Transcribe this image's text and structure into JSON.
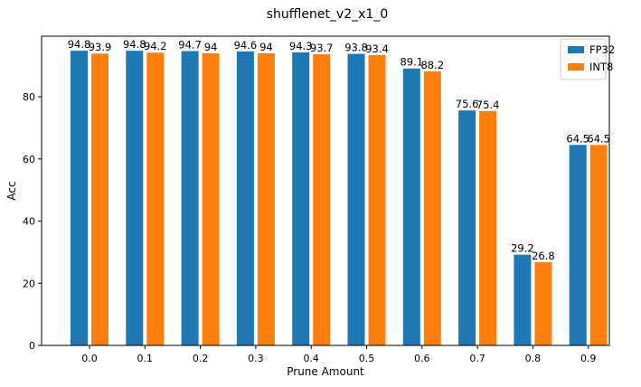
{
  "chart_data": {
    "type": "bar",
    "title": "shufflenet_v2_x1_0",
    "xlabel": "Prune Amount",
    "ylabel": "Acc",
    "categories": [
      "0.0",
      "0.1",
      "0.2",
      "0.3",
      "0.4",
      "0.5",
      "0.6",
      "0.7",
      "0.8",
      "0.9"
    ],
    "series": [
      {
        "name": "FP32",
        "color": "#1f77b4",
        "values": [
          94.8,
          94.8,
          94.7,
          94.6,
          94.3,
          93.8,
          89.1,
          75.6,
          29.2,
          64.5
        ],
        "labels": [
          "94.8",
          "94.8",
          "94.7",
          "94.6",
          "94.3",
          "93.8",
          "89.1",
          "75.6",
          "29.2",
          "64.5"
        ]
      },
      {
        "name": "INT8",
        "color": "#ff7f0e",
        "values": [
          93.9,
          94.2,
          94.0,
          94.0,
          93.7,
          93.4,
          88.2,
          75.4,
          26.8,
          64.5
        ],
        "labels": [
          "93.9",
          "94.2",
          "94",
          "94",
          "93.7",
          "93.4",
          "88.2",
          "75.4",
          "26.8",
          "64.5"
        ]
      }
    ],
    "ylim": [
      0,
      99.5
    ],
    "yticks": [
      "0",
      "20",
      "40",
      "60",
      "80"
    ],
    "grid": false,
    "legend_position": "top-right"
  }
}
